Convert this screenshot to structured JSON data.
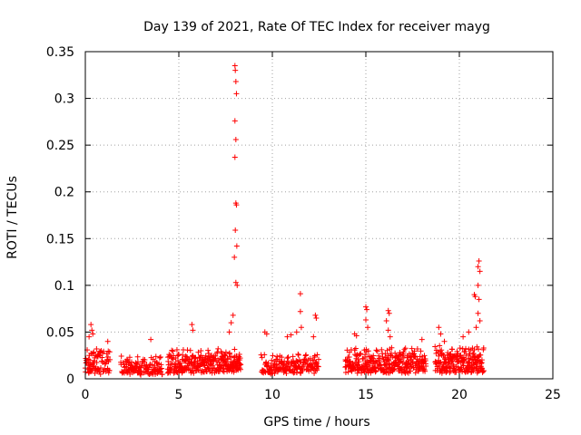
{
  "chart_data": {
    "type": "scatter",
    "title": "Day 139 of 2021, Rate Of TEC Index for receiver mayg",
    "xlabel": "GPS time / hours",
    "ylabel": "ROTI / TECUs",
    "xlim": [
      0,
      25
    ],
    "ylim": [
      0,
      0.35
    ],
    "xticks": [
      0,
      5,
      10,
      15,
      20,
      25
    ],
    "yticks": [
      0,
      0.05,
      0.1,
      0.15,
      0.2,
      0.25,
      0.3,
      0.35
    ],
    "xtick_labels": [
      "0",
      "5",
      "10",
      "15",
      "20",
      "25"
    ],
    "ytick_labels": [
      "0",
      "0.05",
      "0.1",
      "0.15",
      "0.2",
      "0.25",
      "0.3",
      "0.35"
    ],
    "grid": true,
    "marker": "+",
    "marker_color": "#ff0000",
    "segments": [
      {
        "x_start": 0.0,
        "x_end": 1.3,
        "y_min": 0.005,
        "y_max": 0.03,
        "step": 0.025
      },
      {
        "x_start": 1.9,
        "x_end": 4.1,
        "y_min": 0.004,
        "y_max": 0.022,
        "step": 0.025
      },
      {
        "x_start": 4.4,
        "x_end": 8.3,
        "y_min": 0.006,
        "y_max": 0.03,
        "step": 0.02
      },
      {
        "x_start": 9.4,
        "x_end": 12.5,
        "y_min": 0.005,
        "y_max": 0.024,
        "step": 0.025
      },
      {
        "x_start": 13.9,
        "x_end": 18.2,
        "y_min": 0.006,
        "y_max": 0.03,
        "step": 0.02
      },
      {
        "x_start": 18.7,
        "x_end": 21.3,
        "y_min": 0.006,
        "y_max": 0.032,
        "step": 0.02
      }
    ],
    "highlights": [
      {
        "x": 0.2,
        "y": 0.045
      },
      {
        "x": 0.3,
        "y": 0.058
      },
      {
        "x": 0.35,
        "y": 0.052
      },
      {
        "x": 0.4,
        "y": 0.048
      },
      {
        "x": 1.2,
        "y": 0.04
      },
      {
        "x": 3.5,
        "y": 0.042
      },
      {
        "x": 5.7,
        "y": 0.058
      },
      {
        "x": 5.75,
        "y": 0.052
      },
      {
        "x": 7.7,
        "y": 0.05
      },
      {
        "x": 7.8,
        "y": 0.06
      },
      {
        "x": 7.9,
        "y": 0.068
      },
      {
        "x": 8.0,
        "y": 0.335
      },
      {
        "x": 8.02,
        "y": 0.33
      },
      {
        "x": 8.05,
        "y": 0.318
      },
      {
        "x": 8.08,
        "y": 0.305
      },
      {
        "x": 8.0,
        "y": 0.276
      },
      {
        "x": 8.05,
        "y": 0.256
      },
      {
        "x": 8.0,
        "y": 0.237
      },
      {
        "x": 8.05,
        "y": 0.188
      },
      {
        "x": 8.08,
        "y": 0.186
      },
      {
        "x": 8.02,
        "y": 0.159
      },
      {
        "x": 8.1,
        "y": 0.142
      },
      {
        "x": 7.97,
        "y": 0.13
      },
      {
        "x": 8.05,
        "y": 0.103
      },
      {
        "x": 8.12,
        "y": 0.1
      },
      {
        "x": 9.6,
        "y": 0.05
      },
      {
        "x": 9.7,
        "y": 0.048
      },
      {
        "x": 10.8,
        "y": 0.045
      },
      {
        "x": 11.0,
        "y": 0.047
      },
      {
        "x": 11.5,
        "y": 0.091
      },
      {
        "x": 11.5,
        "y": 0.072
      },
      {
        "x": 11.55,
        "y": 0.055
      },
      {
        "x": 11.3,
        "y": 0.05
      },
      {
        "x": 12.3,
        "y": 0.068
      },
      {
        "x": 12.35,
        "y": 0.065
      },
      {
        "x": 12.2,
        "y": 0.045
      },
      {
        "x": 14.4,
        "y": 0.048
      },
      {
        "x": 14.5,
        "y": 0.046
      },
      {
        "x": 15.0,
        "y": 0.077
      },
      {
        "x": 15.05,
        "y": 0.074
      },
      {
        "x": 15.0,
        "y": 0.063
      },
      {
        "x": 15.1,
        "y": 0.055
      },
      {
        "x": 16.2,
        "y": 0.073
      },
      {
        "x": 16.25,
        "y": 0.07
      },
      {
        "x": 16.1,
        "y": 0.062
      },
      {
        "x": 16.2,
        "y": 0.052
      },
      {
        "x": 16.3,
        "y": 0.045
      },
      {
        "x": 18.0,
        "y": 0.042
      },
      {
        "x": 18.9,
        "y": 0.055
      },
      {
        "x": 19.0,
        "y": 0.048
      },
      {
        "x": 19.2,
        "y": 0.04
      },
      {
        "x": 20.8,
        "y": 0.09
      },
      {
        "x": 20.85,
        "y": 0.088
      },
      {
        "x": 21.0,
        "y": 0.12
      },
      {
        "x": 21.05,
        "y": 0.126
      },
      {
        "x": 21.1,
        "y": 0.115
      },
      {
        "x": 21.0,
        "y": 0.1
      },
      {
        "x": 21.05,
        "y": 0.085
      },
      {
        "x": 21.0,
        "y": 0.07
      },
      {
        "x": 21.1,
        "y": 0.062
      },
      {
        "x": 20.9,
        "y": 0.055
      },
      {
        "x": 20.5,
        "y": 0.05
      },
      {
        "x": 20.2,
        "y": 0.045
      }
    ]
  }
}
